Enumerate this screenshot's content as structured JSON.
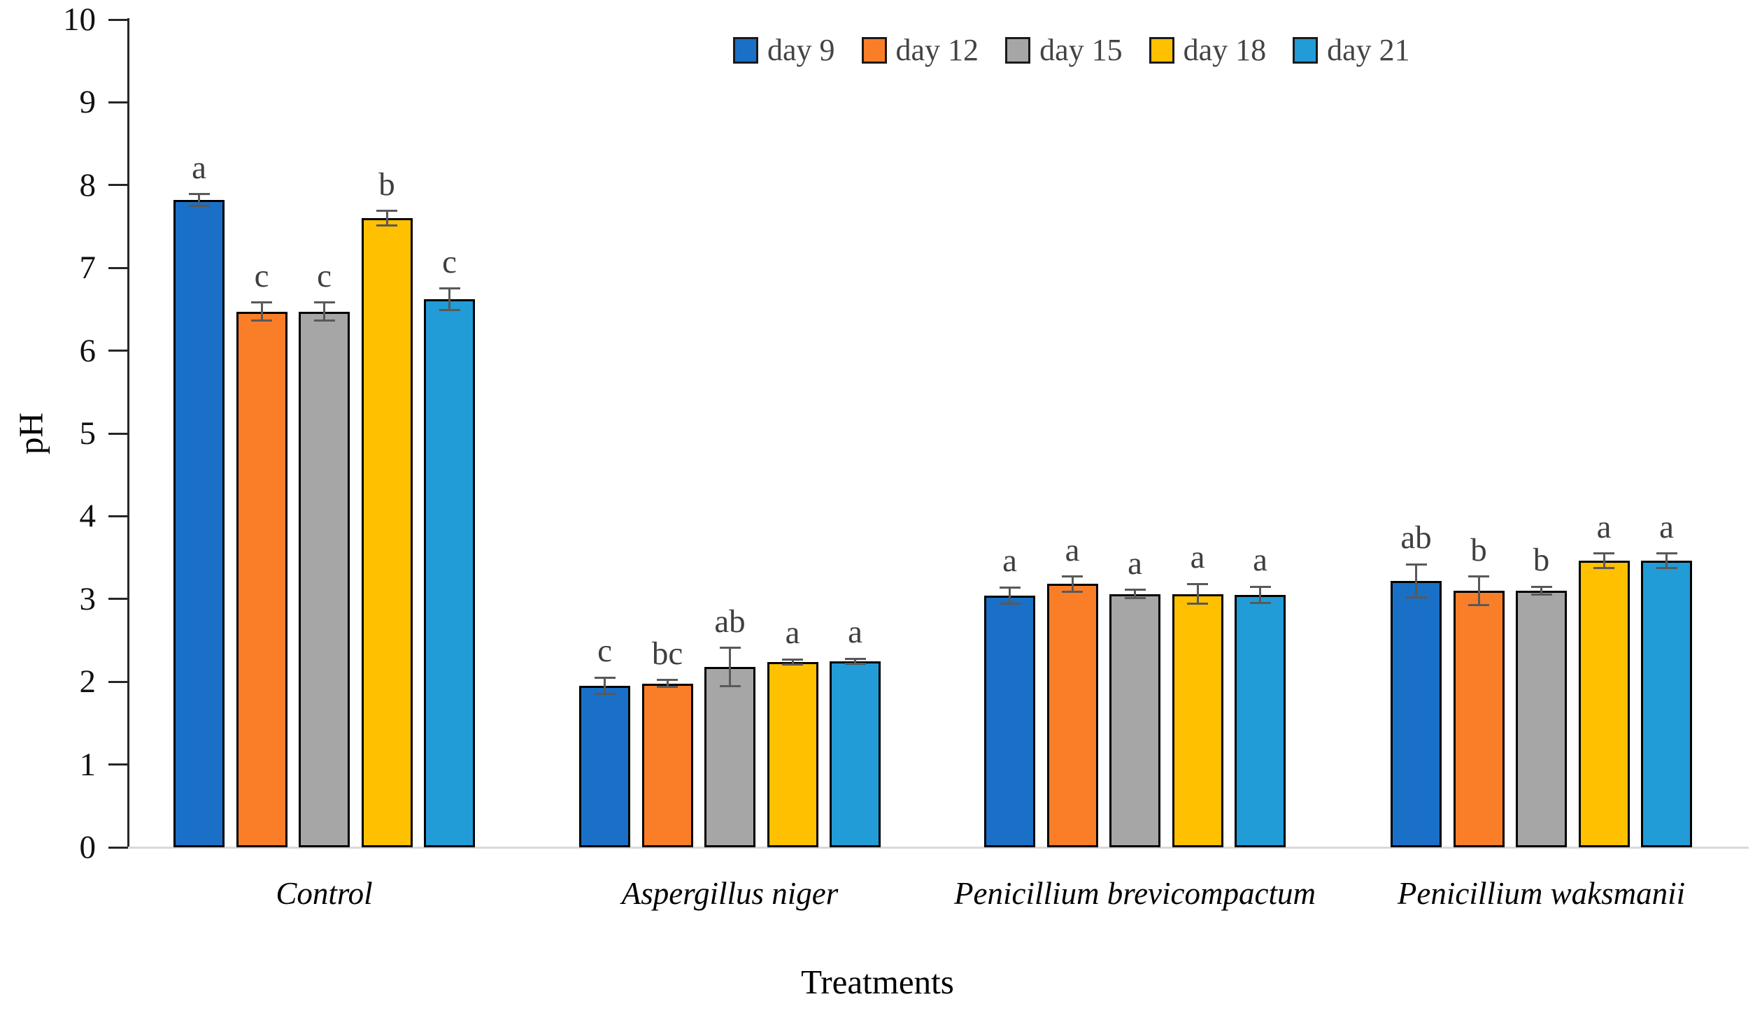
{
  "chart_data": {
    "type": "bar",
    "title": "",
    "xlabel": "Treatments",
    "ylabel": "pH",
    "ylim": [
      0,
      10
    ],
    "yticks": [
      0,
      1,
      2,
      3,
      4,
      5,
      6,
      7,
      8,
      9,
      10
    ],
    "grid": false,
    "legend_position": "top-center",
    "categories": [
      "Control",
      "Aspergillus niger",
      "Penicillium brevicompactum",
      "Penicillium waksmanii"
    ],
    "categories_style": "italic",
    "series": [
      {
        "name": "day 9",
        "color": "#1A70C6",
        "values": [
          7.82,
          1.95,
          3.04,
          3.22
        ],
        "errors": [
          0.07,
          0.1,
          0.1,
          0.2
        ],
        "letters": [
          "a",
          "c",
          "a",
          "ab"
        ]
      },
      {
        "name": "day 12",
        "color": "#FA7E28",
        "values": [
          6.47,
          1.98,
          3.18,
          3.1
        ],
        "errors": [
          0.11,
          0.04,
          0.09,
          0.17
        ],
        "letters": [
          "c",
          "bc",
          "a",
          "b"
        ]
      },
      {
        "name": "day 15",
        "color": "#A6A6A6",
        "values": [
          6.47,
          2.18,
          3.06,
          3.1
        ],
        "errors": [
          0.11,
          0.23,
          0.05,
          0.05
        ],
        "letters": [
          "c",
          "ab",
          "a",
          "b"
        ]
      },
      {
        "name": "day 18",
        "color": "#FFC000",
        "values": [
          7.6,
          2.24,
          3.06,
          3.46
        ],
        "errors": [
          0.09,
          0.03,
          0.12,
          0.09
        ],
        "letters": [
          "b",
          "a",
          "a",
          "a"
        ]
      },
      {
        "name": "day 21",
        "color": "#219CD7",
        "values": [
          6.62,
          2.25,
          3.05,
          3.46
        ],
        "errors": [
          0.13,
          0.03,
          0.1,
          0.09
        ],
        "letters": [
          "c",
          "a",
          "a",
          "a"
        ]
      }
    ],
    "error_bar_color": "#595959",
    "letter_color": "#3F3F3F",
    "axis_color": "#262626",
    "baseline_color": "#D9D9D9"
  }
}
